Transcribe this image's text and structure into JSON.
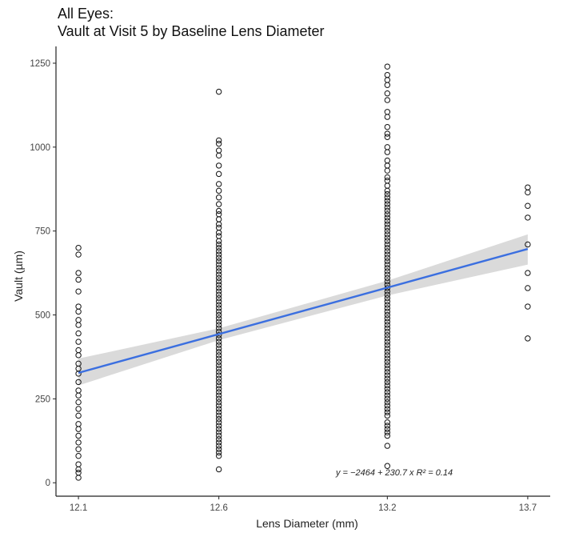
{
  "chart_data": {
    "type": "scatter",
    "title": "All Eyes:",
    "subtitle": "Vault at Visit 5 by Baseline Lens Diameter",
    "xlabel": "Lens Diameter (mm)",
    "ylabel": "Vault (µm)",
    "x_ticks": [
      "12.1",
      "12.6",
      "13.2",
      "13.7"
    ],
    "y_ticks": [
      0,
      250,
      500,
      750,
      1000,
      1250
    ],
    "ylim": [
      -40,
      1300
    ],
    "xlim": [
      12.02,
      13.78
    ],
    "annotation": "y = −2464 + 230.7 x   R² = 0.14",
    "fit": {
      "intercept": -2464,
      "slope": 230.7,
      "r_squared": 0.14,
      "line_color": "#3b6fe0",
      "band_color": "#d3d3d3",
      "band": [
        {
          "x": 12.1,
          "lo": 290,
          "hi": 370
        },
        {
          "x": 12.6,
          "lo": 425,
          "hi": 460
        },
        {
          "x": 13.2,
          "lo": 558,
          "hi": 602
        },
        {
          "x": 13.7,
          "lo": 650,
          "hi": 740
        }
      ]
    },
    "series": [
      {
        "x": 12.1,
        "values": [
          700,
          680,
          625,
          605,
          570,
          525,
          510,
          485,
          470,
          445,
          420,
          395,
          380,
          355,
          340,
          325,
          300,
          275,
          260,
          240,
          220,
          200,
          175,
          160,
          140,
          120,
          100,
          80,
          55,
          40,
          30,
          15
        ]
      },
      {
        "x": 12.6,
        "values": [
          1165,
          1020,
          1010,
          990,
          975,
          945,
          920,
          890,
          870,
          850,
          830,
          810,
          800,
          785,
          770,
          760,
          745,
          735,
          720,
          710,
          700,
          690,
          680,
          670,
          660,
          650,
          640,
          630,
          620,
          610,
          600,
          590,
          580,
          570,
          560,
          550,
          540,
          530,
          520,
          510,
          500,
          490,
          480,
          470,
          460,
          450,
          440,
          430,
          420,
          410,
          400,
          390,
          380,
          370,
          360,
          350,
          340,
          330,
          320,
          310,
          300,
          290,
          280,
          270,
          260,
          250,
          240,
          230,
          220,
          210,
          200,
          190,
          180,
          170,
          160,
          150,
          140,
          130,
          120,
          110,
          100,
          90,
          80,
          40
        ]
      },
      {
        "x": 13.2,
        "values": [
          1240,
          1215,
          1200,
          1185,
          1160,
          1140,
          1105,
          1090,
          1060,
          1040,
          1030,
          1000,
          985,
          960,
          945,
          930,
          910,
          900,
          885,
          870,
          860,
          850,
          840,
          830,
          820,
          810,
          800,
          790,
          780,
          770,
          760,
          750,
          740,
          730,
          720,
          710,
          700,
          690,
          680,
          670,
          660,
          650,
          640,
          630,
          620,
          610,
          600,
          590,
          580,
          570,
          560,
          550,
          540,
          530,
          520,
          510,
          500,
          490,
          480,
          470,
          460,
          450,
          440,
          430,
          420,
          410,
          400,
          390,
          380,
          370,
          360,
          350,
          340,
          330,
          320,
          310,
          300,
          290,
          280,
          270,
          260,
          250,
          240,
          230,
          220,
          210,
          200,
          180,
          170,
          160,
          150,
          140,
          110,
          50
        ]
      },
      {
        "x": 13.7,
        "values": [
          880,
          865,
          825,
          790,
          710,
          625,
          580,
          525,
          430
        ]
      }
    ],
    "grid": false,
    "legend": "none"
  }
}
